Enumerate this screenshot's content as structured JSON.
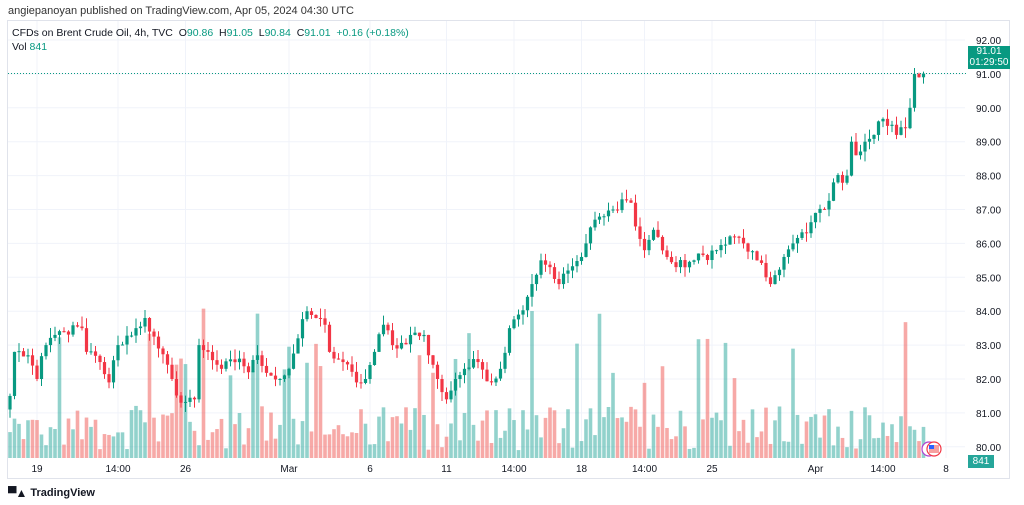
{
  "header": {
    "published": "angiepanoyan published on TradingView.com, Apr 05, 2024 04:30 UTC"
  },
  "legend": {
    "symbol": "CFDs on Brent Crude Oil, 4h, TVC",
    "o_label": "O",
    "o": "90.86",
    "h_label": "H",
    "h": "91.05",
    "l_label": "L",
    "l": "90.84",
    "c_label": "C",
    "c": "91.01",
    "change": "+0.16 (+0.18%)",
    "vol_label": "Vol",
    "vol": "841"
  },
  "badges": {
    "price": "91.01",
    "countdown": "01:29:50",
    "volume": "841"
  },
  "logo": "TradingView",
  "colors": {
    "up": "#089981",
    "down": "#f23645",
    "vol_up": "#26a69a",
    "vol_down": "#ef5350",
    "grid": "#f0f3fa"
  },
  "chart_data": {
    "type": "candlestick",
    "title": "CFDs on Brent Crude Oil, 4h, TVC",
    "ylim": [
      79.6,
      92.5
    ],
    "y_ticks": [
      "92.00",
      "91.00",
      "90.00",
      "89.00",
      "88.00",
      "87.00",
      "86.00",
      "85.00",
      "84.00",
      "83.00",
      "82.00",
      "81.00",
      "80.00"
    ],
    "x_ticks": [
      {
        "label": "19",
        "index": 6
      },
      {
        "label": "14:00",
        "index": 24
      },
      {
        "label": "26",
        "index": 39
      },
      {
        "label": "Mar",
        "index": 62
      },
      {
        "label": "6",
        "index": 80
      },
      {
        "label": "11",
        "index": 97
      },
      {
        "label": "14:00",
        "index": 112
      },
      {
        "label": "18",
        "index": 127
      },
      {
        "label": "14:00",
        "index": 141
      },
      {
        "label": "25",
        "index": 156
      },
      {
        "label": "Apr",
        "index": 179
      },
      {
        "label": "14:00",
        "index": 194
      },
      {
        "label": "8",
        "index": 208
      }
    ],
    "candle_count": 204,
    "close_path": [
      [
        0,
        81.5
      ],
      [
        1,
        82.8
      ],
      [
        4,
        82.7
      ],
      [
        6,
        82.0
      ],
      [
        8,
        83.0
      ],
      [
        10,
        83.3
      ],
      [
        12,
        83.4
      ],
      [
        16,
        83.5
      ],
      [
        17,
        82.8
      ],
      [
        20,
        82.5
      ],
      [
        22,
        81.9
      ],
      [
        24,
        83.0
      ],
      [
        28,
        83.5
      ],
      [
        30,
        83.8
      ],
      [
        31,
        83.4
      ],
      [
        33,
        82.9
      ],
      [
        36,
        82.0
      ],
      [
        38,
        81.3
      ],
      [
        41,
        81.4
      ],
      [
        42,
        83.0
      ],
      [
        44,
        82.8
      ],
      [
        47,
        82.3
      ],
      [
        51,
        82.6
      ],
      [
        53,
        82.2
      ],
      [
        55,
        82.7
      ],
      [
        58,
        82.1
      ],
      [
        60,
        82.0
      ],
      [
        62,
        82.3
      ],
      [
        64,
        83.2
      ],
      [
        66,
        84.0
      ],
      [
        68,
        83.8
      ],
      [
        70,
        83.6
      ],
      [
        71,
        82.8
      ],
      [
        74,
        82.5
      ],
      [
        77,
        81.9
      ],
      [
        79,
        82.0
      ],
      [
        81,
        82.8
      ],
      [
        83,
        83.6
      ],
      [
        86,
        82.9
      ],
      [
        89,
        83.3
      ],
      [
        92,
        83.3
      ],
      [
        93,
        82.7
      ],
      [
        95,
        82.0
      ],
      [
        97,
        81.4
      ],
      [
        99,
        82.0
      ],
      [
        101,
        82.3
      ],
      [
        104,
        82.5
      ],
      [
        107,
        81.9
      ],
      [
        109,
        82.3
      ],
      [
        111,
        83.5
      ],
      [
        113,
        83.9
      ],
      [
        116,
        84.8
      ],
      [
        118,
        85.5
      ],
      [
        120,
        85.3
      ],
      [
        122,
        84.8
      ],
      [
        124,
        85.2
      ],
      [
        127,
        85.6
      ],
      [
        128,
        86.0
      ],
      [
        130,
        86.7
      ],
      [
        132,
        86.8
      ],
      [
        134,
        87.0
      ],
      [
        136,
        87.3
      ],
      [
        138,
        87.2
      ],
      [
        139,
        86.5
      ],
      [
        141,
        85.8
      ],
      [
        143,
        86.4
      ],
      [
        146,
        85.6
      ],
      [
        148,
        85.3
      ],
      [
        152,
        85.5
      ],
      [
        157,
        85.8
      ],
      [
        161,
        86.2
      ],
      [
        163,
        86.0
      ],
      [
        166,
        85.5
      ],
      [
        168,
        85.0
      ],
      [
        169,
        84.8
      ],
      [
        172,
        85.6
      ],
      [
        174,
        86.0
      ],
      [
        177,
        86.3
      ],
      [
        179,
        86.9
      ],
      [
        181,
        87.0
      ],
      [
        183,
        87.8
      ],
      [
        186,
        88.0
      ],
      [
        187,
        89.0
      ],
      [
        188,
        88.6
      ],
      [
        190,
        89.0
      ],
      [
        192,
        89.2
      ],
      [
        193,
        89.6
      ],
      [
        196,
        89.5
      ],
      [
        197,
        89.2
      ],
      [
        199,
        89.4
      ],
      [
        200,
        90.0
      ],
      [
        201,
        91.0
      ],
      [
        202,
        90.9
      ],
      [
        203,
        91.01
      ]
    ],
    "last_price": 91.01
  }
}
